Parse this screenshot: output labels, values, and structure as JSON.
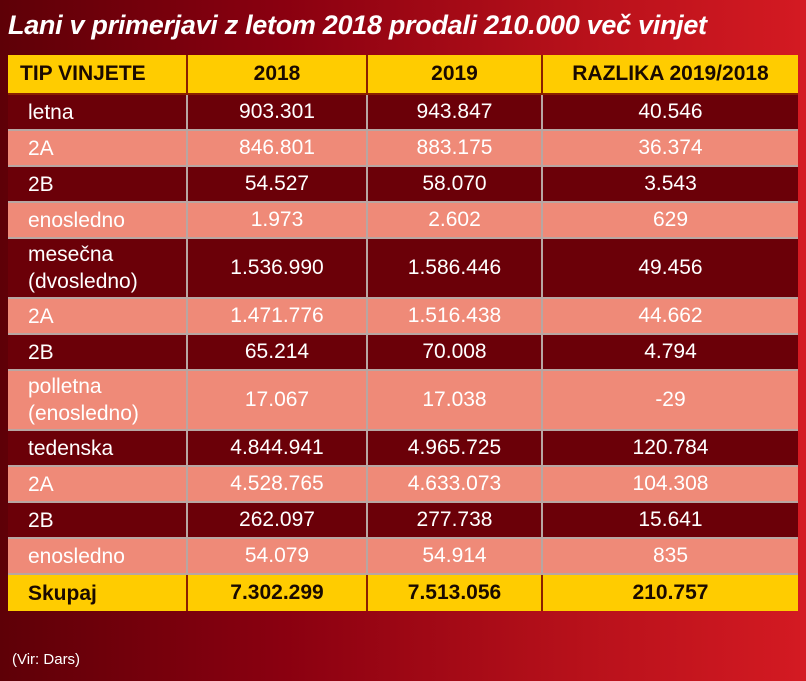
{
  "title": "Lani v primerjavi z letom 2018 prodali 210.000 več vinjet",
  "source": "(Vir: Dars)",
  "chart_data": {
    "type": "table",
    "title": "Lani v primerjavi z letom 2018 prodali 210.000 več vinjet",
    "columns": [
      "TIP VINJETE",
      "2018",
      "2019",
      "RAZLIKA 2019/2018"
    ],
    "rows": [
      {
        "label": "letna",
        "v2018": "903.301",
        "v2019": "943.847",
        "diff": "40.546",
        "style": "dark"
      },
      {
        "label": "2A",
        "v2018": "846.801",
        "v2019": "883.175",
        "diff": "36.374",
        "style": "light"
      },
      {
        "label": "2B",
        "v2018": "54.527",
        "v2019": "58.070",
        "diff": "3.543",
        "style": "dark"
      },
      {
        "label": "enosledno",
        "v2018": "1.973",
        "v2019": "2.602",
        "diff": "629",
        "style": "light"
      },
      {
        "label": "mesečna (dvosledno)",
        "v2018": "1.536.990",
        "v2019": "1.586.446",
        "diff": "49.456",
        "style": "dark"
      },
      {
        "label": "2A",
        "v2018": "1.471.776",
        "v2019": "1.516.438",
        "diff": "44.662",
        "style": "light"
      },
      {
        "label": "2B",
        "v2018": "65.214",
        "v2019": "70.008",
        "diff": "4.794",
        "style": "dark"
      },
      {
        "label": "polletna (enosledno)",
        "v2018": "17.067",
        "v2019": "17.038",
        "diff": "-29",
        "style": "light"
      },
      {
        "label": "tedenska",
        "v2018": "4.844.941",
        "v2019": "4.965.725",
        "diff": "120.784",
        "style": "dark"
      },
      {
        "label": "2A",
        "v2018": "4.528.765",
        "v2019": "4.633.073",
        "diff": "104.308",
        "style": "light"
      },
      {
        "label": "2B",
        "v2018": "262.097",
        "v2019": "277.738",
        "diff": "15.641",
        "style": "dark"
      },
      {
        "label": "enosledno",
        "v2018": "54.079",
        "v2019": "54.914",
        "diff": "835",
        "style": "light"
      }
    ],
    "total": {
      "label": "Skupaj",
      "v2018": "7.302.299",
      "v2019": "7.513.056",
      "diff": "210.757"
    }
  },
  "colors": {
    "header_bg": "#ffcc00",
    "dark_row": "#6b0008",
    "light_row": "#ef8a78",
    "background_left": "#5e0007",
    "background_right": "#d41a22"
  }
}
